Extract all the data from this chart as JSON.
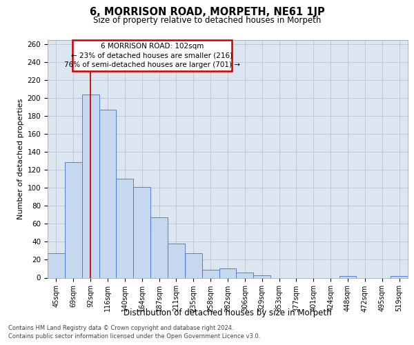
{
  "title": "6, MORRISON ROAD, MORPETH, NE61 1JP",
  "subtitle": "Size of property relative to detached houses in Morpeth",
  "xlabel": "Distribution of detached houses by size in Morpeth",
  "ylabel": "Number of detached properties",
  "categories": [
    "45sqm",
    "69sqm",
    "92sqm",
    "116sqm",
    "140sqm",
    "164sqm",
    "187sqm",
    "211sqm",
    "235sqm",
    "258sqm",
    "282sqm",
    "306sqm",
    "329sqm",
    "353sqm",
    "377sqm",
    "401sqm",
    "424sqm",
    "448sqm",
    "472sqm",
    "495sqm",
    "519sqm"
  ],
  "values": [
    27,
    129,
    204,
    187,
    110,
    101,
    67,
    38,
    27,
    9,
    10,
    6,
    3,
    0,
    0,
    0,
    0,
    2,
    0,
    0,
    2
  ],
  "bar_color": "#c5d8f0",
  "bar_edge_color": "#4472c4",
  "grid_color": "#c0c8d8",
  "plot_bg_color": "#dce6f1",
  "annotation_line1": "6 MORRISON ROAD: 102sqm",
  "annotation_line2": "← 23% of detached houses are smaller (216)",
  "annotation_line3": "76% of semi-detached houses are larger (701) →",
  "annotation_rect_color": "#ffffff",
  "annotation_rect_edge": "#cc0000",
  "red_line_x": 2,
  "ylim": [
    0,
    265
  ],
  "yticks": [
    0,
    20,
    40,
    60,
    80,
    100,
    120,
    140,
    160,
    180,
    200,
    220,
    240,
    260
  ],
  "footer_line1": "Contains HM Land Registry data © Crown copyright and database right 2024.",
  "footer_line2": "Contains public sector information licensed under the Open Government Licence v3.0."
}
